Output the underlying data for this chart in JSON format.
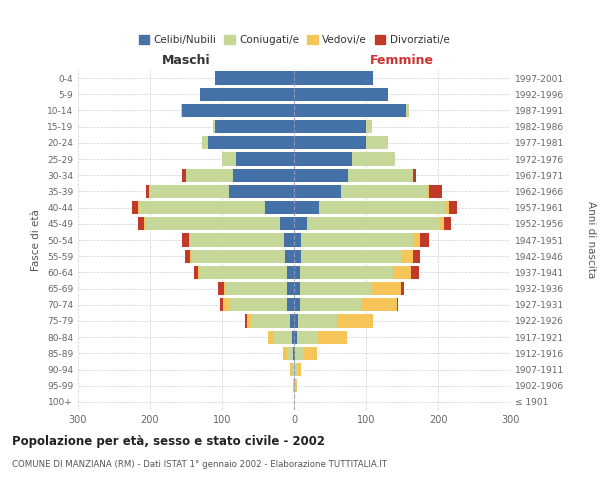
{
  "age_groups": [
    "100+",
    "95-99",
    "90-94",
    "85-89",
    "80-84",
    "75-79",
    "70-74",
    "65-69",
    "60-64",
    "55-59",
    "50-54",
    "45-49",
    "40-44",
    "35-39",
    "30-34",
    "25-29",
    "20-24",
    "15-19",
    "10-14",
    "5-9",
    "0-4"
  ],
  "birth_years": [
    "≤ 1901",
    "1902-1906",
    "1907-1911",
    "1912-1916",
    "1917-1921",
    "1922-1926",
    "1927-1931",
    "1932-1936",
    "1937-1941",
    "1942-1946",
    "1947-1951",
    "1952-1956",
    "1957-1961",
    "1962-1966",
    "1967-1971",
    "1972-1976",
    "1977-1981",
    "1982-1986",
    "1987-1991",
    "1992-1996",
    "1997-2001"
  ],
  "males": {
    "celibe": [
      0,
      0,
      0,
      2,
      3,
      5,
      10,
      10,
      10,
      12,
      14,
      20,
      40,
      90,
      85,
      80,
      120,
      110,
      155,
      130,
      110
    ],
    "coniugato": [
      0,
      1,
      3,
      8,
      25,
      55,
      80,
      85,
      120,
      130,
      130,
      185,
      175,
      110,
      65,
      20,
      8,
      2,
      2,
      0,
      0
    ],
    "vedovo": [
      0,
      0,
      2,
      5,
      8,
      5,
      8,
      2,
      4,
      2,
      2,
      3,
      2,
      1,
      0,
      0,
      0,
      0,
      0,
      0,
      0
    ],
    "divorziato": [
      0,
      0,
      0,
      0,
      0,
      3,
      5,
      8,
      5,
      8,
      10,
      8,
      8,
      5,
      5,
      0,
      0,
      0,
      0,
      0,
      0
    ]
  },
  "females": {
    "nubile": [
      0,
      0,
      0,
      2,
      4,
      5,
      8,
      8,
      8,
      10,
      10,
      18,
      35,
      65,
      75,
      80,
      100,
      100,
      155,
      130,
      110
    ],
    "coniugata": [
      0,
      2,
      5,
      10,
      30,
      55,
      85,
      100,
      130,
      140,
      155,
      185,
      175,
      120,
      90,
      60,
      30,
      8,
      5,
      0,
      0
    ],
    "vedova": [
      0,
      2,
      5,
      20,
      40,
      50,
      50,
      40,
      25,
      15,
      10,
      5,
      5,
      2,
      0,
      0,
      0,
      0,
      0,
      0,
      0
    ],
    "divorziata": [
      0,
      0,
      0,
      0,
      0,
      0,
      2,
      5,
      10,
      10,
      12,
      10,
      12,
      18,
      5,
      0,
      0,
      0,
      0,
      0,
      0
    ]
  },
  "colors": {
    "celibe": "#4472A8",
    "coniugato": "#C5D89A",
    "vedovo": "#F5C55A",
    "divorziato": "#C0392B"
  },
  "xlim": 300,
  "title": "Popolazione per età, sesso e stato civile - 2002",
  "subtitle": "COMUNE DI MANZIANA (RM) - Dati ISTAT 1° gennaio 2002 - Elaborazione TUTTITALIA.IT",
  "ylabel_left": "Fasce di età",
  "ylabel_right": "Anni di nascita",
  "xlabel_left": "Maschi",
  "xlabel_right": "Femmine",
  "bg_color": "#ffffff",
  "grid_color": "#cccccc"
}
